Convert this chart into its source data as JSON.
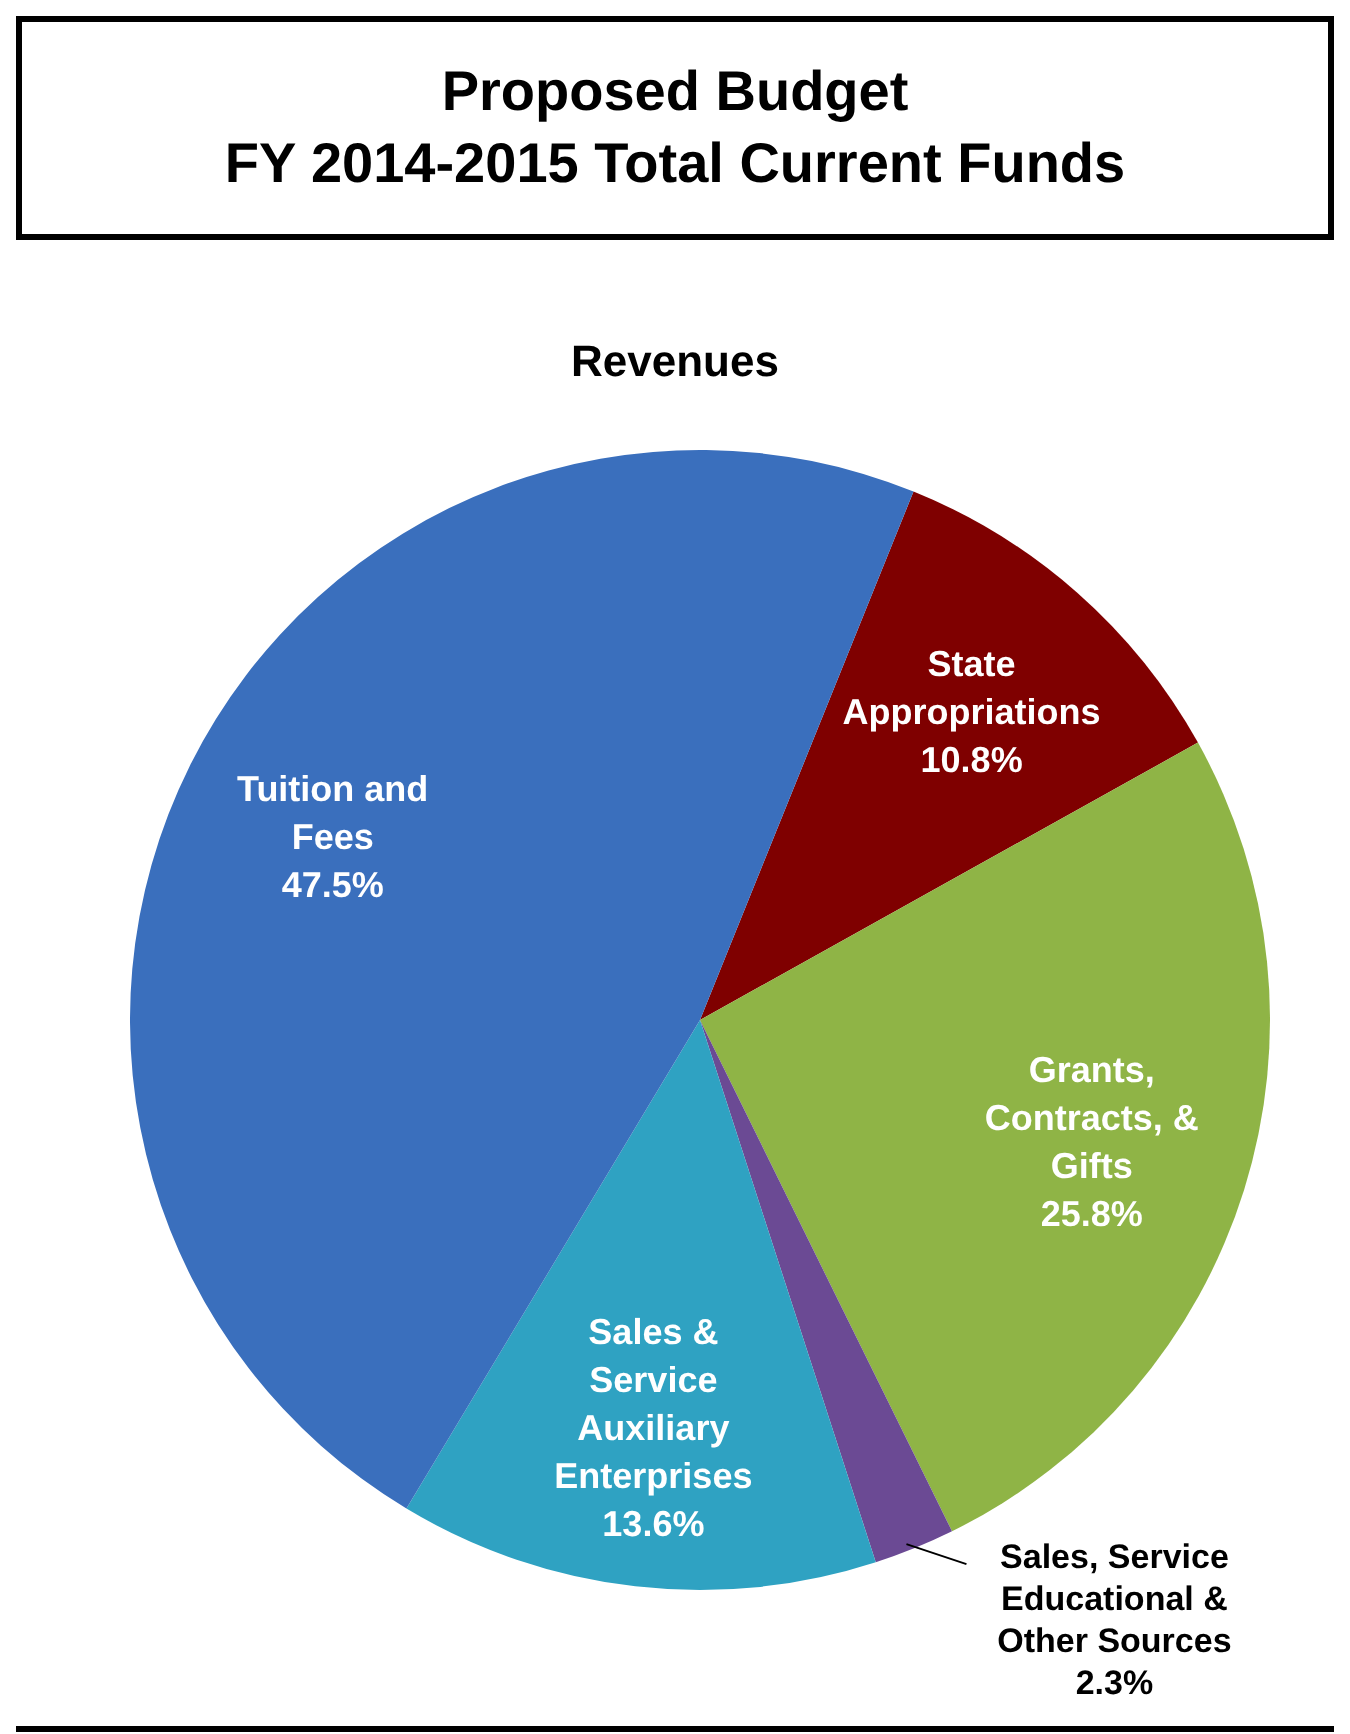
{
  "chart_data": {
    "type": "pie",
    "title": "Proposed Budget\nFY 2014-2015 Total Current Funds",
    "subtitle": "Revenues",
    "categories": [
      "State Appropriations",
      "Grants, Contracts, & Gifts",
      "Sales, Service Educational & Other Sources",
      "Sales & Service Auxiliary Enterprises",
      "Tuition and Fees"
    ],
    "values": [
      10.8,
      25.8,
      2.3,
      13.6,
      47.5
    ],
    "colors": [
      "#7f0000",
      "#8fb446",
      "#6b4a94",
      "#2fa2c2",
      "#3a6fbd"
    ],
    "value_labels": [
      "10.8%",
      "25.8%",
      "2.3%",
      "13.6%",
      "47.5%"
    ]
  }
}
